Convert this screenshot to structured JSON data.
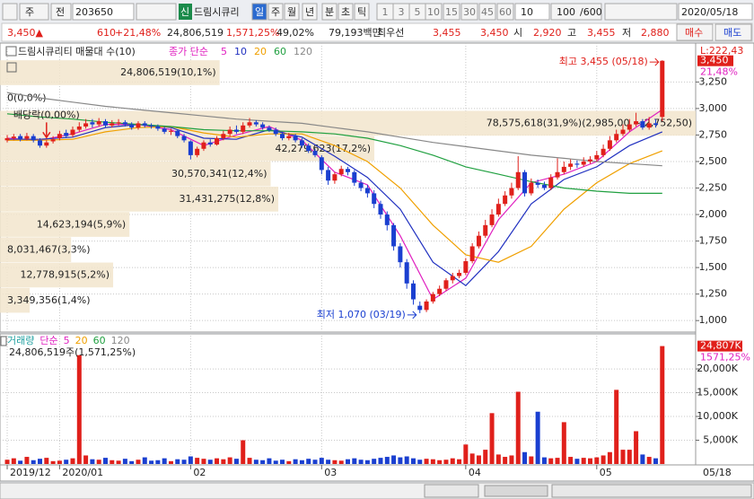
{
  "toolbar": {
    "market": "주",
    "mode": "전",
    "code": "203650",
    "badge": "신",
    "name": "드림시큐리",
    "periods": [
      "일",
      "주",
      "월",
      "년",
      "분",
      "초",
      "틱"
    ],
    "intervals": [
      "1",
      "3",
      "5",
      "10",
      "15",
      "30",
      "45",
      "60"
    ],
    "count_select": "10",
    "range_value": "100",
    "range_total": "/600",
    "date": "2020/05/18"
  },
  "quote": {
    "price": "3,450▲",
    "change": "610",
    "change_pct": "+21,48%",
    "volume": "24,806,519",
    "volume_pct": "1,571,25%",
    "ratio": "49,02%",
    "amount": "79,193백만",
    "best_label": "최우선",
    "ask": "3,455",
    "bid": "3,450",
    "open_label": "시",
    "open": "2,920",
    "high_label": "고",
    "high": "3,455",
    "low_label": "저",
    "low": "2,880",
    "buy": "매수",
    "sell": "매도"
  },
  "chart_data": [
    {
      "type": "candlestick",
      "title": "드림시큐리티 매물대 수(10)",
      "ma_label": "종가 단순",
      "up_color": "#e0201b",
      "down_color": "#1a3fd0",
      "grid": true,
      "open": [
        2700,
        2720,
        2740,
        2715,
        2740,
        2700,
        2650,
        2690,
        2720,
        2770,
        2750,
        2800,
        2830,
        2870,
        2850,
        2880,
        2840,
        2860,
        2870,
        2850,
        2820,
        2860,
        2840,
        2830,
        2810,
        2780,
        2790,
        2740,
        2690,
        2560,
        2620,
        2680,
        2660,
        2720,
        2760,
        2800,
        2780,
        2840,
        2870,
        2850,
        2820,
        2800,
        2760,
        2720,
        2740,
        2700,
        2650,
        2600,
        2540,
        2420,
        2320,
        2380,
        2430,
        2400,
        2300,
        2250,
        2200,
        2100,
        2000,
        1900,
        1700,
        1550,
        1350,
        1140,
        1100,
        1180,
        1250,
        1300,
        1380,
        1420,
        1450,
        1560,
        1700,
        1800,
        1900,
        2000,
        2100,
        2180,
        2250,
        2400,
        2200,
        2300,
        2280,
        2250,
        2350,
        2400,
        2450,
        2480,
        2470,
        2500,
        2520,
        2560,
        2620,
        2700,
        2760,
        2800,
        2850,
        2880,
        2820,
        2860,
        2920
      ],
      "high": [
        2750,
        2760,
        2760,
        2770,
        2760,
        2720,
        2700,
        2740,
        2790,
        2800,
        2830,
        2870,
        2900,
        2900,
        2910,
        2900,
        2890,
        2900,
        2890,
        2870,
        2880,
        2880,
        2860,
        2850,
        2830,
        2810,
        2800,
        2760,
        2700,
        2640,
        2700,
        2710,
        2740,
        2790,
        2830,
        2840,
        2870,
        2910,
        2890,
        2870,
        2840,
        2820,
        2780,
        2770,
        2760,
        2720,
        2670,
        2620,
        2560,
        2450,
        2400,
        2460,
        2450,
        2420,
        2330,
        2280,
        2230,
        2130,
        2030,
        1920,
        1730,
        1580,
        1380,
        1180,
        1200,
        1270,
        1330,
        1400,
        1450,
        1480,
        1590,
        1730,
        1840,
        1950,
        2050,
        2150,
        2220,
        2300,
        2550,
        2420,
        2340,
        2330,
        2310,
        2380,
        2530,
        2500,
        2520,
        2510,
        2540,
        2550,
        2600,
        2660,
        2740,
        2800,
        2850,
        2900,
        2960,
        2900,
        2920,
        2900,
        3455
      ],
      "low": [
        2680,
        2700,
        2690,
        2700,
        2680,
        2630,
        2630,
        2670,
        2700,
        2720,
        2730,
        2780,
        2810,
        2820,
        2830,
        2820,
        2820,
        2840,
        2830,
        2800,
        2800,
        2820,
        2810,
        2790,
        2760,
        2750,
        2720,
        2680,
        2520,
        2540,
        2600,
        2640,
        2650,
        2700,
        2740,
        2760,
        2760,
        2820,
        2830,
        2800,
        2780,
        2740,
        2700,
        2700,
        2680,
        2630,
        2580,
        2540,
        2380,
        2280,
        2290,
        2360,
        2370,
        2270,
        2220,
        2160,
        2060,
        1960,
        1850,
        1660,
        1500,
        1300,
        1150,
        1070,
        1080,
        1160,
        1230,
        1280,
        1350,
        1400,
        1430,
        1540,
        1680,
        1780,
        1880,
        1980,
        2080,
        2150,
        2230,
        2170,
        2180,
        2250,
        2230,
        2230,
        2330,
        2380,
        2420,
        2440,
        2450,
        2480,
        2500,
        2540,
        2600,
        2680,
        2740,
        2780,
        2830,
        2800,
        2800,
        2820,
        2880
      ],
      "close": [
        2720,
        2735,
        2710,
        2740,
        2700,
        2650,
        2680,
        2710,
        2760,
        2740,
        2800,
        2830,
        2860,
        2850,
        2880,
        2840,
        2860,
        2870,
        2850,
        2820,
        2860,
        2840,
        2830,
        2810,
        2780,
        2790,
        2740,
        2700,
        2560,
        2620,
        2680,
        2660,
        2720,
        2760,
        2800,
        2780,
        2840,
        2870,
        2850,
        2820,
        2800,
        2760,
        2720,
        2740,
        2700,
        2650,
        2600,
        2560,
        2420,
        2320,
        2380,
        2430,
        2400,
        2300,
        2250,
        2200,
        2100,
        2000,
        1900,
        1700,
        1550,
        1350,
        1200,
        1100,
        1180,
        1250,
        1300,
        1380,
        1420,
        1450,
        1560,
        1700,
        1800,
        1900,
        2000,
        2100,
        2180,
        2250,
        2400,
        2200,
        2300,
        2280,
        2250,
        2350,
        2400,
        2450,
        2480,
        2470,
        2500,
        2520,
        2560,
        2620,
        2700,
        2760,
        2800,
        2850,
        2880,
        2820,
        2860,
        2845,
        3450
      ],
      "series": [
        {
          "name": "5",
          "color": "#e020c0",
          "x": [
            0,
            5,
            10,
            15,
            20,
            25,
            30,
            35,
            40,
            45,
            50,
            55,
            60,
            65,
            70,
            75,
            80,
            85,
            90,
            95,
            100
          ],
          "values": [
            2720,
            2700,
            2760,
            2850,
            2850,
            2800,
            2650,
            2750,
            2830,
            2700,
            2400,
            2280,
            1800,
            1200,
            1400,
            1950,
            2300,
            2380,
            2500,
            2780,
            2990
          ]
        },
        {
          "name": "10",
          "color": "#2030c0",
          "x": [
            0,
            5,
            10,
            15,
            20,
            25,
            30,
            35,
            40,
            45,
            50,
            55,
            60,
            65,
            70,
            75,
            80,
            85,
            90,
            95,
            100
          ],
          "values": [
            2710,
            2710,
            2730,
            2820,
            2850,
            2820,
            2720,
            2710,
            2800,
            2730,
            2550,
            2350,
            2050,
            1550,
            1330,
            1650,
            2100,
            2330,
            2450,
            2650,
            2780
          ]
        },
        {
          "name": "20",
          "color": "#f0a000",
          "x": [
            0,
            5,
            10,
            15,
            20,
            25,
            30,
            35,
            40,
            45,
            50,
            55,
            60,
            65,
            70,
            75,
            80,
            85,
            90,
            95,
            100
          ],
          "values": [
            2700,
            2700,
            2710,
            2780,
            2820,
            2830,
            2770,
            2730,
            2760,
            2760,
            2650,
            2500,
            2250,
            1900,
            1620,
            1550,
            1700,
            2050,
            2300,
            2480,
            2600
          ]
        },
        {
          "name": "60",
          "color": "#20a040",
          "x": [
            0,
            5,
            10,
            15,
            20,
            25,
            30,
            35,
            40,
            45,
            50,
            55,
            60,
            65,
            70,
            75,
            80,
            85,
            90,
            95,
            100
          ],
          "values": [
            2950,
            2920,
            2900,
            2870,
            2850,
            2830,
            2800,
            2790,
            2790,
            2780,
            2760,
            2720,
            2650,
            2560,
            2450,
            2380,
            2310,
            2250,
            2220,
            2200,
            2200
          ]
        },
        {
          "name": "120",
          "color": "#888888",
          "x": [
            0,
            5,
            10,
            15,
            20,
            25,
            30,
            35,
            40,
            45,
            50,
            55,
            60,
            65,
            70,
            75,
            80,
            85,
            90,
            95,
            100
          ],
          "values": [
            3150,
            3100,
            3060,
            3020,
            2990,
            2960,
            2930,
            2900,
            2880,
            2860,
            2820,
            2780,
            2730,
            2680,
            2640,
            2600,
            2560,
            2530,
            2500,
            2480,
            2460
          ]
        }
      ],
      "xlim": [
        -1.1,
        105.1
      ],
      "xticks": [
        {
          "value": 0,
          "label": "2019/12"
        },
        {
          "value": 8,
          "label": "2020/01"
        },
        {
          "value": 28,
          "label": "02"
        },
        {
          "value": 48,
          "label": "03"
        },
        {
          "value": 70,
          "label": "04"
        },
        {
          "value": 90,
          "label": "05"
        }
      ],
      "last_date": "05/18",
      "ylim": [
        900,
        3600
      ],
      "yticks": [
        {
          "value": 1000,
          "label": "1,000"
        },
        {
          "value": 1250,
          "label": "1,250"
        },
        {
          "value": 1500,
          "label": "1,500"
        },
        {
          "value": 1750,
          "label": "1,750"
        },
        {
          "value": 2000,
          "label": "2,000"
        },
        {
          "value": 2250,
          "label": "2,250"
        },
        {
          "value": 2500,
          "label": "2,500"
        },
        {
          "value": 2750,
          "label": "2,750"
        },
        {
          "value": 3000,
          "label": "3,000"
        },
        {
          "value": 3250,
          "label": "3,250"
        }
      ],
      "axis_top_label": "L:222,43",
      "last_price_label": "3,450",
      "last_change_label": "21,48%",
      "profile": {
        "color": "#f2e5cc",
        "values": [
          24806519,
          0,
          78575618,
          42279623,
          30570341,
          31431275,
          14623194,
          8031467,
          12778915,
          3349356
        ],
        "value_labels": [
          "24,806,519(10,1%)",
          "0(0,0%)",
          "78,575,618(31,9%)(2,985,00 ~ 2,752,50)",
          "42,279,623(17,2%)",
          "30,570,341(12,4%)",
          "31,431,275(12,8%)",
          "14,623,194(5,9%)",
          "8,031,467(3,3%)",
          "12,778,915(5,2%)",
          "3,349,356(1,4%)"
        ]
      },
      "high_note": "최고 3,455 (05/18)",
      "low_note": "최저 1,070 (03/19)",
      "dividend": {
        "label": "배당락(0,00%)",
        "x": 6
      }
    },
    {
      "type": "bar",
      "legend": [
        "거래량",
        "단순",
        "5",
        "20",
        "60",
        "120"
      ],
      "legend_colors": [
        "#20a0a0",
        "#e020c0",
        "#e020c0",
        "#f0a000",
        "#20a040",
        "#888888"
      ],
      "label": "24,806,519주(1,571,25%)",
      "last_label": "24,807K",
      "last_pct": "1571,25%",
      "values": [
        900,
        1200,
        700,
        1500,
        800,
        1100,
        1300,
        600,
        700,
        900,
        1200,
        22900,
        1800,
        1000,
        900,
        1300,
        800,
        700,
        1100,
        600,
        900,
        1400,
        700,
        800,
        1200,
        600,
        1000,
        900,
        1600,
        1300,
        1100,
        900,
        1200,
        1000,
        1400,
        1100,
        5000,
        1300,
        900,
        800,
        1200,
        700,
        900,
        600,
        1000,
        800,
        1100,
        900,
        1300,
        900,
        800,
        700,
        1000,
        1200,
        900,
        800,
        1100,
        1300,
        1500,
        1800,
        1400,
        1600,
        1200,
        900,
        1100,
        1000,
        800,
        900,
        1200,
        1000,
        4100,
        2200,
        1800,
        3000,
        10700,
        2000,
        1500,
        1800,
        15200,
        2500,
        1600,
        11000,
        1400,
        1200,
        1300,
        8800,
        1500,
        1100,
        1300,
        1200,
        1400,
        1800,
        2500,
        15600,
        3000,
        3000,
        6900,
        2000,
        1500,
        1200,
        24807
      ],
      "ylim": [
        0,
        27000
      ],
      "yticks": [
        {
          "value": 5000,
          "label": "5,000K"
        },
        {
          "value": 10000,
          "label": "10,000K"
        },
        {
          "value": 15000,
          "label": "15,000K"
        },
        {
          "value": 20000,
          "label": "20,000K"
        }
      ]
    }
  ]
}
